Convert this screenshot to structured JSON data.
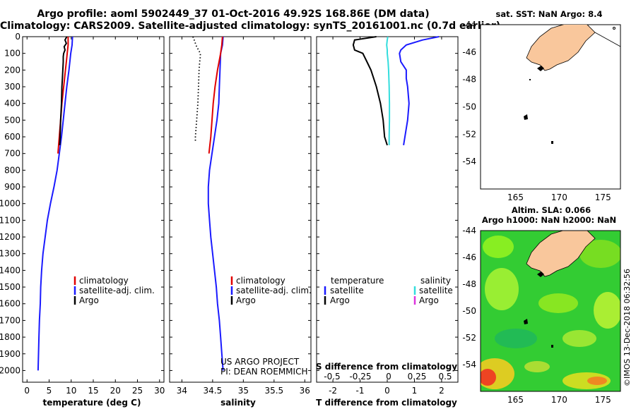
{
  "header": {
    "line1": "Argo profile: aoml 5902449_37 01-Oct-2016 49.92S 168.86E (DM data)",
    "line2": "Climatology: CARS2009. Satellite-adjusted climatology: synTS_20161001.nc (0.7d earlier)"
  },
  "colors": {
    "climatology": "#e00000",
    "satellite": "#1a1aff",
    "argo": "#000000",
    "t_satellite": "#1a1aff",
    "s_satellite": "#33dddd",
    "s_argo": "#dd33dd",
    "land": "#f9c79c",
    "sla_field": "#33cc33"
  },
  "credits": {
    "project": "US ARGO PROJECT",
    "pi": "PI: DEAN ROEMMICH",
    "imos": "©IMOS 13-Dec-2018 06:32:56"
  },
  "chart_data": [
    {
      "type": "line",
      "name": "temperature-profile",
      "xlabel": "temperature (deg C)",
      "ylabel": "",
      "xlim": [
        -1,
        31
      ],
      "ylim": [
        2070,
        0
      ],
      "xticks": [
        0,
        5,
        10,
        15,
        20,
        25,
        30
      ],
      "yticks": [
        0,
        100,
        200,
        300,
        400,
        500,
        600,
        700,
        800,
        900,
        1000,
        1100,
        1200,
        1300,
        1400,
        1500,
        1600,
        1700,
        1800,
        1900,
        2000
      ],
      "legend": [
        "climatology",
        "satellite-adj. clim.",
        "Argo"
      ],
      "series": [
        {
          "name": "climatology",
          "depth": [
            0,
            50,
            100,
            150,
            200,
            300,
            400,
            500,
            600,
            700
          ],
          "values": [
            9.3,
            9.3,
            9.1,
            8.9,
            8.7,
            8.3,
            7.9,
            7.6,
            7.3,
            7.0
          ]
        },
        {
          "name": "satellite-adj. clim.",
          "depth": [
            0,
            50,
            100,
            200,
            300,
            400,
            500,
            600,
            700,
            800,
            900,
            1000,
            1100,
            1200,
            1300,
            1400,
            1500,
            1600,
            1700,
            1800,
            1900,
            2000
          ],
          "values": [
            10.3,
            10.2,
            9.9,
            9.5,
            9.0,
            8.6,
            8.2,
            7.8,
            7.3,
            6.8,
            6.1,
            5.3,
            4.6,
            4.1,
            3.6,
            3.3,
            3.1,
            3.0,
            2.8,
            2.7,
            2.6,
            2.5
          ]
        },
        {
          "name": "Argo",
          "depth": [
            0,
            20,
            40,
            60,
            80,
            100,
            120,
            150,
            200,
            250,
            300,
            400,
            500,
            600,
            650
          ],
          "values": [
            9.0,
            8.6,
            8.9,
            8.4,
            8.6,
            8.3,
            8.2,
            8.2,
            8.1,
            8.0,
            7.9,
            7.8,
            7.6,
            7.5,
            7.4
          ]
        }
      ]
    },
    {
      "type": "line",
      "name": "salinity-profile",
      "xlabel": "salinity",
      "xlim": [
        33.8,
        36.1
      ],
      "ylim": [
        2070,
        0
      ],
      "xticks": [
        34,
        34.5,
        35,
        35.5,
        36
      ],
      "legend": [
        "climatology",
        "satellite-adj. clim.",
        "Argo"
      ],
      "series": [
        {
          "name": "climatology",
          "depth": [
            0,
            50,
            100,
            200,
            300,
            400,
            500,
            600,
            700
          ],
          "values": [
            34.66,
            34.65,
            34.63,
            34.58,
            34.54,
            34.51,
            34.49,
            34.47,
            34.44
          ]
        },
        {
          "name": "satellite-adj. clim.",
          "depth": [
            0,
            50,
            100,
            200,
            300,
            400,
            500,
            600,
            700,
            800,
            900,
            1000,
            1100,
            1200,
            1300,
            1400,
            1500,
            1600,
            1700,
            1800,
            1900,
            2000
          ],
          "values": [
            34.67,
            34.66,
            34.63,
            34.62,
            34.61,
            34.6,
            34.57,
            34.53,
            34.49,
            34.45,
            34.43,
            34.43,
            34.45,
            34.47,
            34.5,
            34.53,
            34.56,
            34.58,
            34.61,
            34.63,
            34.65,
            34.67
          ]
        },
        {
          "name": "Argo",
          "depth": [
            0,
            20,
            40,
            60,
            80,
            100,
            120,
            150,
            200,
            300,
            400,
            500,
            600,
            630
          ],
          "values": [
            34.18,
            34.2,
            34.22,
            34.24,
            34.27,
            34.3,
            34.3,
            34.29,
            34.28,
            34.27,
            34.26,
            34.24,
            34.22,
            34.22
          ]
        }
      ]
    },
    {
      "type": "line",
      "name": "difference-profile",
      "xlabel": "T difference from climatology",
      "xlabel2": "S difference from climatology",
      "xlim": [
        -2.6,
        2.6
      ],
      "ylim": [
        2070,
        0
      ],
      "xticks": [
        -2,
        -1,
        0,
        1,
        2
      ],
      "s_ticks": [
        -0.5,
        -0.25,
        0,
        0.25,
        0.5
      ],
      "s_tick_labels": [
        "-0.5",
        "-0.25",
        "0",
        "0.25",
        "0.5"
      ],
      "legend_temperature": {
        "title": "temperature",
        "entries": [
          "satellite",
          "Argo"
        ]
      },
      "legend_salinity": {
        "title": "salinity",
        "entries": [
          "satellite",
          "Argo"
        ]
      },
      "series": [
        {
          "name": "T satellite",
          "depth": [
            0,
            20,
            50,
            80,
            100,
            150,
            200,
            250,
            300,
            400,
            500,
            600,
            650
          ],
          "values": [
            1.9,
            1.3,
            0.7,
            0.5,
            0.45,
            0.5,
            0.7,
            0.7,
            0.75,
            0.8,
            0.75,
            0.65,
            0.6
          ]
        },
        {
          "name": "T Argo",
          "depth": [
            0,
            20,
            50,
            80,
            100,
            150,
            200,
            250,
            300,
            400,
            500,
            600,
            650
          ],
          "values": [
            -0.4,
            -1.2,
            -1.25,
            -1.2,
            -0.9,
            -0.75,
            -0.6,
            -0.5,
            -0.4,
            -0.25,
            -0.15,
            -0.1,
            0.0
          ]
        },
        {
          "name": "S satellite",
          "depth": [
            0,
            20,
            50,
            80,
            100,
            150,
            200,
            250,
            300,
            400,
            500,
            600,
            650
          ],
          "values": [
            0.02,
            0.0,
            -0.02,
            0.0,
            0.0,
            0.03,
            0.05,
            0.06,
            0.07,
            0.08,
            0.08,
            0.07,
            0.07
          ]
        }
      ]
    },
    {
      "type": "scatter",
      "name": "sst-map",
      "title": "sat. SST: NaN Argo: 8.4",
      "xlim": [
        161,
        177
      ],
      "ylim": [
        -56,
        -44
      ],
      "xticks": [
        165,
        170,
        175
      ],
      "yticks": [
        -44,
        -46,
        -48,
        -50,
        -52,
        -54
      ],
      "points": [
        {
          "lon": 168.86,
          "lat": -49.92,
          "label": "Argo"
        }
      ]
    },
    {
      "type": "heatmap",
      "name": "sla-map",
      "title": "Altim. SLA: 0.066",
      "subtitle": "Argo h1000: NaN h2000: NaN",
      "xlim": [
        161,
        177
      ],
      "ylim": [
        -56,
        -44
      ],
      "xticks": [
        165,
        170,
        175
      ],
      "yticks": [
        -44,
        -46,
        -48,
        -50,
        -52,
        -54
      ],
      "points": [
        {
          "lon": 168.86,
          "lat": -49.92,
          "label": "Argo"
        }
      ]
    }
  ]
}
